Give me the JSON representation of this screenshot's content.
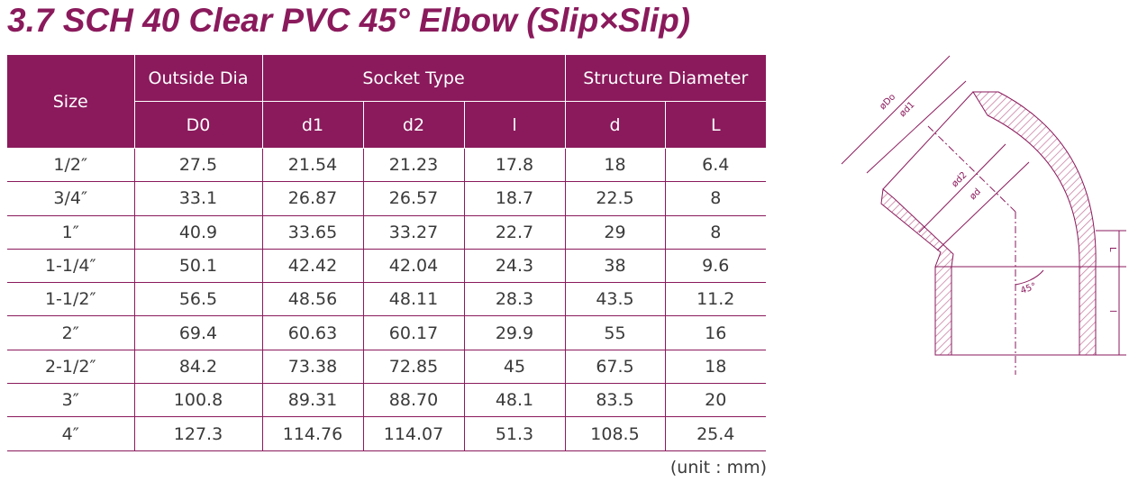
{
  "title": "3.7 SCH 40 Clear PVC 45° Elbow (Slip×Slip)",
  "table": {
    "header": {
      "size": "Size",
      "outside_dia": "Outside Dia",
      "socket_type": "Socket Type",
      "structure_diameter": "Structure Diameter",
      "D0": "D0",
      "d1": "d1",
      "d2": "d2",
      "l": "l",
      "d": "d",
      "L": "L"
    },
    "rows": [
      [
        "1/2″",
        "27.5",
        "21.54",
        "21.23",
        "17.8",
        "18",
        "6.4"
      ],
      [
        "3/4″",
        "33.1",
        "26.87",
        "26.57",
        "18.7",
        "22.5",
        "8"
      ],
      [
        "1″",
        "40.9",
        "33.65",
        "33.27",
        "22.7",
        "29",
        "8"
      ],
      [
        "1-1/4″",
        "50.1",
        "42.42",
        "42.04",
        "24.3",
        "38",
        "9.6"
      ],
      [
        "1-1/2″",
        "56.5",
        "48.56",
        "48.11",
        "28.3",
        "43.5",
        "11.2"
      ],
      [
        "2″",
        "69.4",
        "60.63",
        "60.17",
        "29.9",
        "55",
        "16"
      ],
      [
        "2-1/2″",
        "84.2",
        "73.38",
        "72.85",
        "45",
        "67.5",
        "18"
      ],
      [
        "3″",
        "100.8",
        "89.31",
        "88.70",
        "48.1",
        "83.5",
        "20"
      ],
      [
        "4″",
        "127.3",
        "114.76",
        "114.07",
        "51.3",
        "108.5",
        "25.4"
      ]
    ]
  },
  "unit": "(unit : mm)",
  "diagram": {
    "label_do": "øDo",
    "label_d1": "ød1",
    "label_d2": "ød2",
    "label_d": "ød",
    "label_angle": "45°",
    "label_L": "L",
    "label_l": "l"
  },
  "colors": {
    "brand": "#8a1a5c",
    "text": "#3a3a3a"
  }
}
